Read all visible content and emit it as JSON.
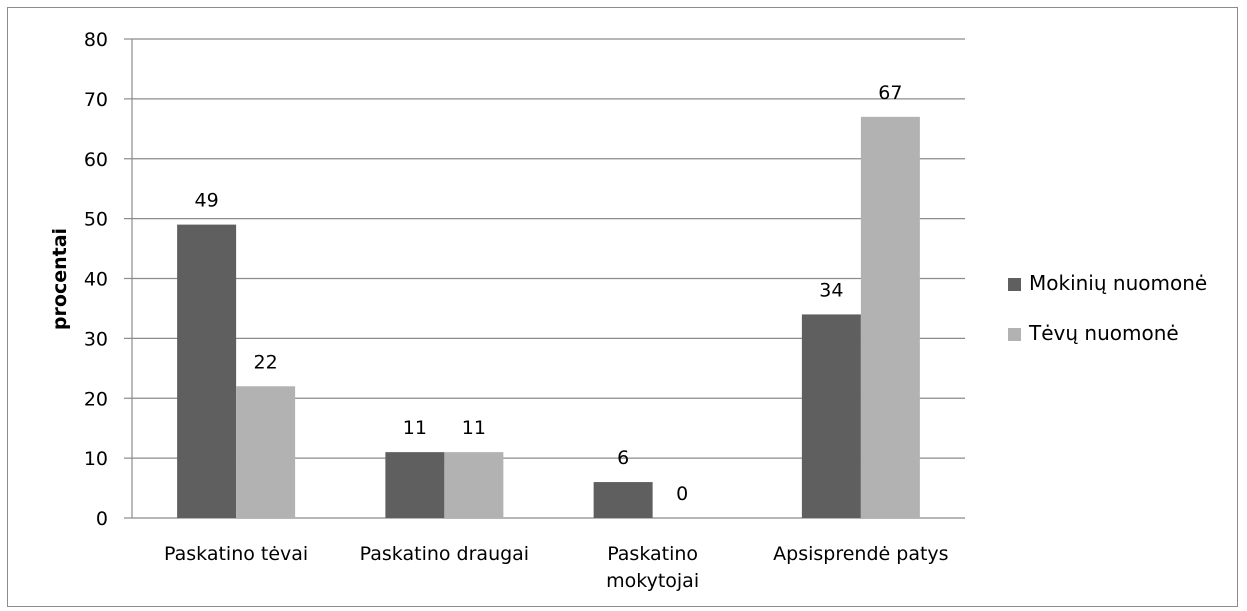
{
  "chart_data": {
    "type": "bar",
    "title": "",
    "xlabel": "",
    "ylabel": "procentai",
    "ylim": [
      0,
      80
    ],
    "yticks": [
      "0",
      "10",
      "20",
      "30",
      "40",
      "50",
      "60",
      "70",
      "80"
    ],
    "grid": true,
    "legend_position": "right",
    "categories": [
      [
        "Paskatino tėvai"
      ],
      [
        "Paskatino draugai"
      ],
      [
        "Paskatino",
        "mokytojai"
      ],
      [
        "Apsisprendė patys"
      ]
    ],
    "series": [
      {
        "name": "Mokinių nuomonė",
        "values": [
          49,
          11,
          6,
          34
        ],
        "color": "#5f5f5f"
      },
      {
        "name": "Tėvų nuomonė",
        "values": [
          22,
          11,
          0,
          67
        ],
        "color": "#b2b2b2"
      }
    ]
  }
}
